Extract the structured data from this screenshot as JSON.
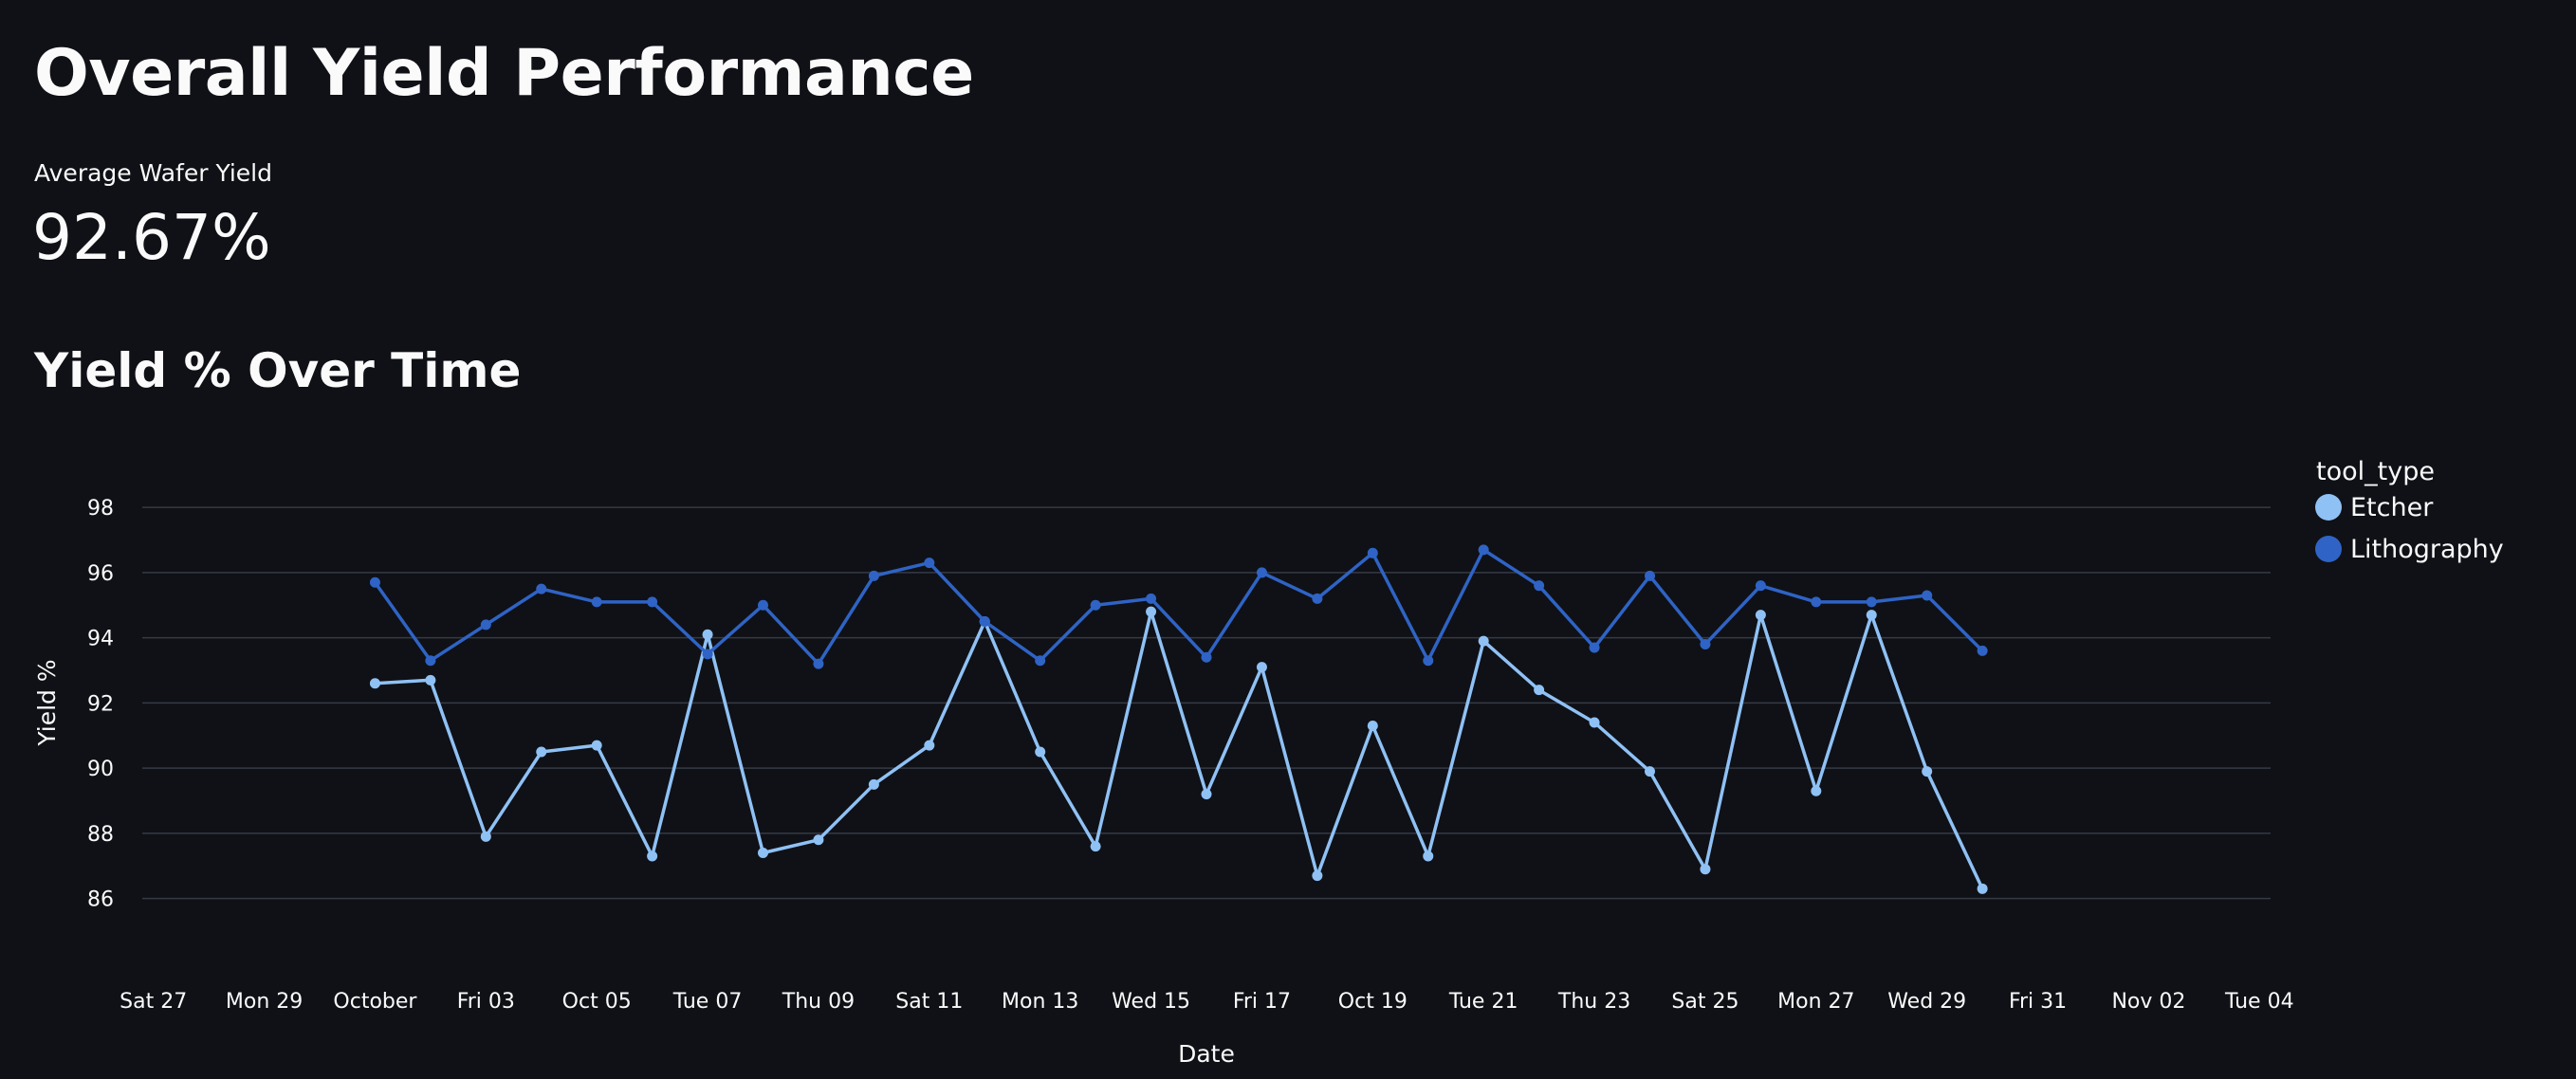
{
  "page": {
    "title": "Overall Yield Performance",
    "metric_label": "Average Wafer Yield",
    "metric_value": "92.67%",
    "section_title": "Yield % Over Time"
  },
  "chart_data": {
    "type": "line",
    "xlabel": "Date",
    "ylabel": "Yield %",
    "ylim": [
      85,
      98.5
    ],
    "y_ticks": [
      86,
      88,
      90,
      92,
      94,
      96,
      98
    ],
    "x_range_days": [
      -4.2,
      34.2
    ],
    "x_ticks": [
      {
        "day": -4,
        "label": "Sat 27"
      },
      {
        "day": -2,
        "label": "Mon 29"
      },
      {
        "day": 0,
        "label": "October"
      },
      {
        "day": 2,
        "label": "Fri 03"
      },
      {
        "day": 4,
        "label": "Oct 05"
      },
      {
        "day": 6,
        "label": "Tue 07"
      },
      {
        "day": 8,
        "label": "Thu 09"
      },
      {
        "day": 10,
        "label": "Sat 11"
      },
      {
        "day": 12,
        "label": "Mon 13"
      },
      {
        "day": 14,
        "label": "Wed 15"
      },
      {
        "day": 16,
        "label": "Fri 17"
      },
      {
        "day": 18,
        "label": "Oct 19"
      },
      {
        "day": 20,
        "label": "Tue 21"
      },
      {
        "day": 22,
        "label": "Thu 23"
      },
      {
        "day": 24,
        "label": "Sat 25"
      },
      {
        "day": 26,
        "label": "Mon 27"
      },
      {
        "day": 28,
        "label": "Wed 29"
      },
      {
        "day": 30,
        "label": "Fri 31"
      },
      {
        "day": 32,
        "label": "Nov 02"
      },
      {
        "day": 34,
        "label": "Tue 04"
      }
    ],
    "x_days": [
      0,
      1,
      2,
      3,
      4,
      5,
      6,
      7,
      8,
      9,
      10,
      11,
      12,
      13,
      14,
      15,
      16,
      17,
      18,
      19,
      20,
      21,
      22,
      23,
      24,
      25,
      26,
      27,
      28,
      29
    ],
    "legend_title": "tool_type",
    "series": [
      {
        "name": "Etcher",
        "color": "#8fc1f5",
        "values": [
          92.6,
          92.7,
          87.9,
          90.5,
          90.7,
          87.3,
          94.1,
          87.4,
          87.8,
          89.5,
          90.7,
          94.5,
          90.5,
          87.6,
          94.8,
          89.2,
          93.1,
          86.7,
          91.3,
          87.3,
          93.9,
          92.4,
          91.4,
          89.9,
          86.9,
          94.7,
          89.3,
          94.7,
          89.9,
          86.3
        ]
      },
      {
        "name": "Lithography",
        "color": "#2f63c5",
        "values": [
          95.7,
          93.3,
          94.4,
          95.5,
          95.1,
          95.1,
          93.5,
          95.0,
          93.2,
          95.9,
          96.3,
          94.5,
          93.3,
          95.0,
          95.2,
          93.4,
          96.0,
          95.2,
          96.6,
          93.3,
          96.7,
          95.6,
          93.7,
          95.9,
          93.8,
          95.6,
          95.1,
          95.1,
          95.3,
          93.6
        ]
      }
    ]
  }
}
